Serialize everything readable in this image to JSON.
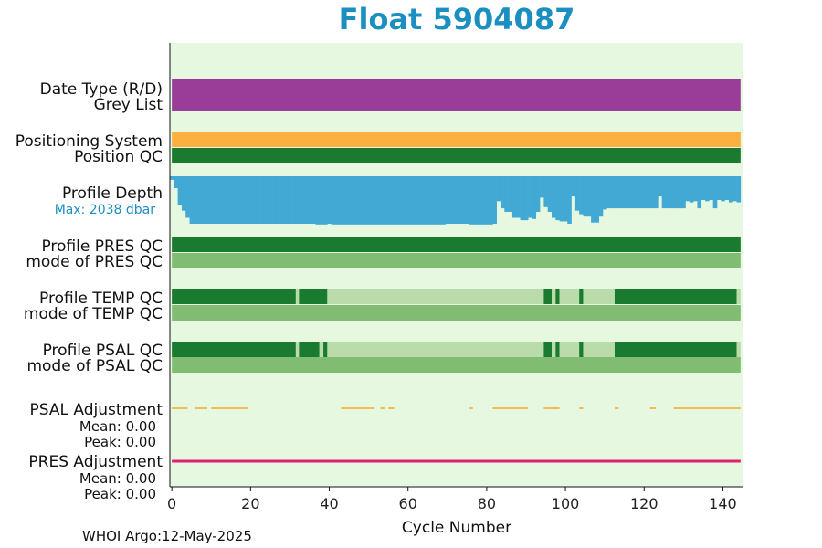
{
  "title": "Float 5904087",
  "footer": "WHOI Argo:12-May-2025",
  "chart_data": {
    "type": "bar",
    "xlabel": "Cycle Number",
    "xlim": [
      -0.5,
      145
    ],
    "xticks": [
      0,
      20,
      40,
      60,
      80,
      100,
      120,
      140
    ],
    "colors": {
      "background": "#e6f9e0",
      "date_type": "#993d99",
      "positioning_system": "#fbb040",
      "qc_good": "#1a7a30",
      "qc_mode": "#80bc72",
      "qc_light": "#badcaa",
      "profile_depth": "#41a9d3",
      "psal_adjustment": "#f2a72e",
      "pres_adjustment": "#e02074"
    },
    "rows": [
      {
        "name": "Date Type (R/D)",
        "label2": "Grey List"
      },
      {
        "name": "Positioning System",
        "label2": "Position QC"
      },
      {
        "name": "Profile Depth",
        "note": "Max: 2038 dbar"
      },
      {
        "name": "Profile PRES QC",
        "label2": "mode of PRES QC"
      },
      {
        "name": "Profile TEMP QC",
        "label2": "mode of TEMP QC"
      },
      {
        "name": "Profile PSAL QC",
        "label2": "mode of PSAL QC"
      },
      {
        "name": "PSAL Adjustment",
        "mean": "Mean: 0.00",
        "peak": "Peak: 0.00"
      },
      {
        "name": "PRES Adjustment",
        "mean": "Mean: 0.00",
        "peak": "Peak: 0.00"
      }
    ],
    "profile_depth": {
      "max_dbar": 2038,
      "cycles": [
        0,
        1,
        2,
        3,
        4,
        5,
        6,
        7,
        8,
        9,
        10,
        11,
        12,
        13,
        14,
        15,
        16,
        17,
        18,
        19,
        20,
        21,
        22,
        23,
        24,
        25,
        26,
        27,
        28,
        29,
        30,
        31,
        32,
        33,
        34,
        35,
        36,
        37,
        38,
        39,
        40,
        41,
        42,
        43,
        44,
        45,
        46,
        47,
        48,
        49,
        50,
        51,
        52,
        53,
        54,
        55,
        56,
        57,
        58,
        59,
        60,
        61,
        62,
        63,
        64,
        65,
        66,
        67,
        68,
        69,
        70,
        71,
        72,
        73,
        74,
        75,
        76,
        77,
        78,
        79,
        80,
        81,
        82,
        83,
        84,
        85,
        86,
        87,
        88,
        89,
        90,
        91,
        92,
        93,
        94,
        95,
        96,
        97,
        98,
        99,
        100,
        101,
        102,
        103,
        104,
        105,
        106,
        107,
        108,
        109,
        110,
        111,
        112,
        113,
        114,
        115,
        116,
        117,
        118,
        119,
        120,
        121,
        122,
        123,
        124,
        125,
        126,
        127,
        128,
        129,
        130,
        131,
        132,
        133,
        134,
        135,
        136,
        137,
        138,
        139,
        140,
        141,
        142,
        143,
        144
      ],
      "depths": [
        150,
        500,
        1220,
        1450,
        1750,
        2000,
        2000,
        2000,
        2000,
        2000,
        2000,
        2000,
        2000,
        2000,
        2000,
        2000,
        2000,
        2000,
        2000,
        2000,
        2000,
        2000,
        2000,
        2000,
        2000,
        2000,
        2000,
        2000,
        2000,
        2000,
        2000,
        2000,
        2000,
        2000,
        2000,
        2000,
        2000,
        2030,
        2030,
        2030,
        2000,
        2030,
        2030,
        2030,
        2030,
        2030,
        2030,
        2030,
        2030,
        2030,
        2030,
        2030,
        2030,
        2030,
        2030,
        2030,
        2030,
        2030,
        2030,
        2030,
        2030,
        2030,
        2030,
        2030,
        2030,
        2030,
        2030,
        2030,
        2030,
        2030,
        2000,
        2000,
        2000,
        2000,
        2000,
        2000,
        2030,
        2030,
        2030,
        2030,
        2030,
        2030,
        2000,
        1050,
        1350,
        1500,
        1500,
        1750,
        1750,
        1850,
        1850,
        1750,
        1800,
        1500,
        900,
        1300,
        1500,
        1750,
        1850,
        1900,
        1900,
        2000,
        850,
        1450,
        1600,
        1700,
        1700,
        1950,
        1950,
        1700,
        1400,
        1350,
        1350,
        1350,
        1350,
        1350,
        1350,
        1350,
        1350,
        1350,
        1350,
        1350,
        1350,
        1350,
        850,
        1350,
        1350,
        1350,
        1350,
        1350,
        1350,
        1050,
        1100,
        1050,
        1350,
        1000,
        1050,
        1000,
        1350,
        1000,
        1050,
        1000,
        1100,
        1050,
        1100
      ]
    },
    "temp_qc": [
      {
        "from": 0,
        "to": 31.5,
        "flag": "good"
      },
      {
        "from": 31.5,
        "to": 32.3,
        "flag": "light"
      },
      {
        "from": 32.3,
        "to": 39.5,
        "flag": "good"
      },
      {
        "from": 39.5,
        "to": 94.5,
        "flag": "light"
      },
      {
        "from": 94.5,
        "to": 96.5,
        "flag": "good"
      },
      {
        "from": 96.5,
        "to": 97.5,
        "flag": "light"
      },
      {
        "from": 97.5,
        "to": 98.5,
        "flag": "good"
      },
      {
        "from": 98.5,
        "to": 103.5,
        "flag": "light"
      },
      {
        "from": 103.5,
        "to": 104.5,
        "flag": "good"
      },
      {
        "from": 104.5,
        "to": 112.5,
        "flag": "light"
      },
      {
        "from": 112.5,
        "to": 143.5,
        "flag": "good"
      },
      {
        "from": 143.5,
        "to": 145,
        "flag": "light"
      }
    ],
    "psal_qc": [
      {
        "from": 0,
        "to": 31.5,
        "flag": "good"
      },
      {
        "from": 31.5,
        "to": 32.3,
        "flag": "light"
      },
      {
        "from": 32.3,
        "to": 37.5,
        "flag": "good"
      },
      {
        "from": 37.5,
        "to": 38.5,
        "flag": "light"
      },
      {
        "from": 38.5,
        "to": 39.5,
        "flag": "good"
      },
      {
        "from": 39.5,
        "to": 94.5,
        "flag": "light"
      },
      {
        "from": 94.5,
        "to": 96.5,
        "flag": "good"
      },
      {
        "from": 96.5,
        "to": 97.5,
        "flag": "light"
      },
      {
        "from": 97.5,
        "to": 98.5,
        "flag": "good"
      },
      {
        "from": 98.5,
        "to": 103.5,
        "flag": "light"
      },
      {
        "from": 103.5,
        "to": 104.5,
        "flag": "good"
      },
      {
        "from": 104.5,
        "to": 112.5,
        "flag": "light"
      },
      {
        "from": 112.5,
        "to": 143.5,
        "flag": "good"
      },
      {
        "from": 143.5,
        "to": 145,
        "flag": "light"
      }
    ],
    "psal_adjustment_segments": [
      [
        0,
        4
      ],
      [
        6,
        9
      ],
      [
        10,
        19.5
      ],
      [
        43,
        51.5
      ],
      [
        53,
        54
      ],
      [
        55,
        56.5
      ],
      [
        75.5,
        76.5
      ],
      [
        81.5,
        90.5
      ],
      [
        94.5,
        98.5
      ],
      [
        103.5,
        104.5
      ],
      [
        112.5,
        113.5
      ],
      [
        121.5,
        123
      ],
      [
        127.5,
        144.5
      ]
    ],
    "pres_adjustment_segments": [
      [
        0,
        144.5
      ]
    ]
  }
}
